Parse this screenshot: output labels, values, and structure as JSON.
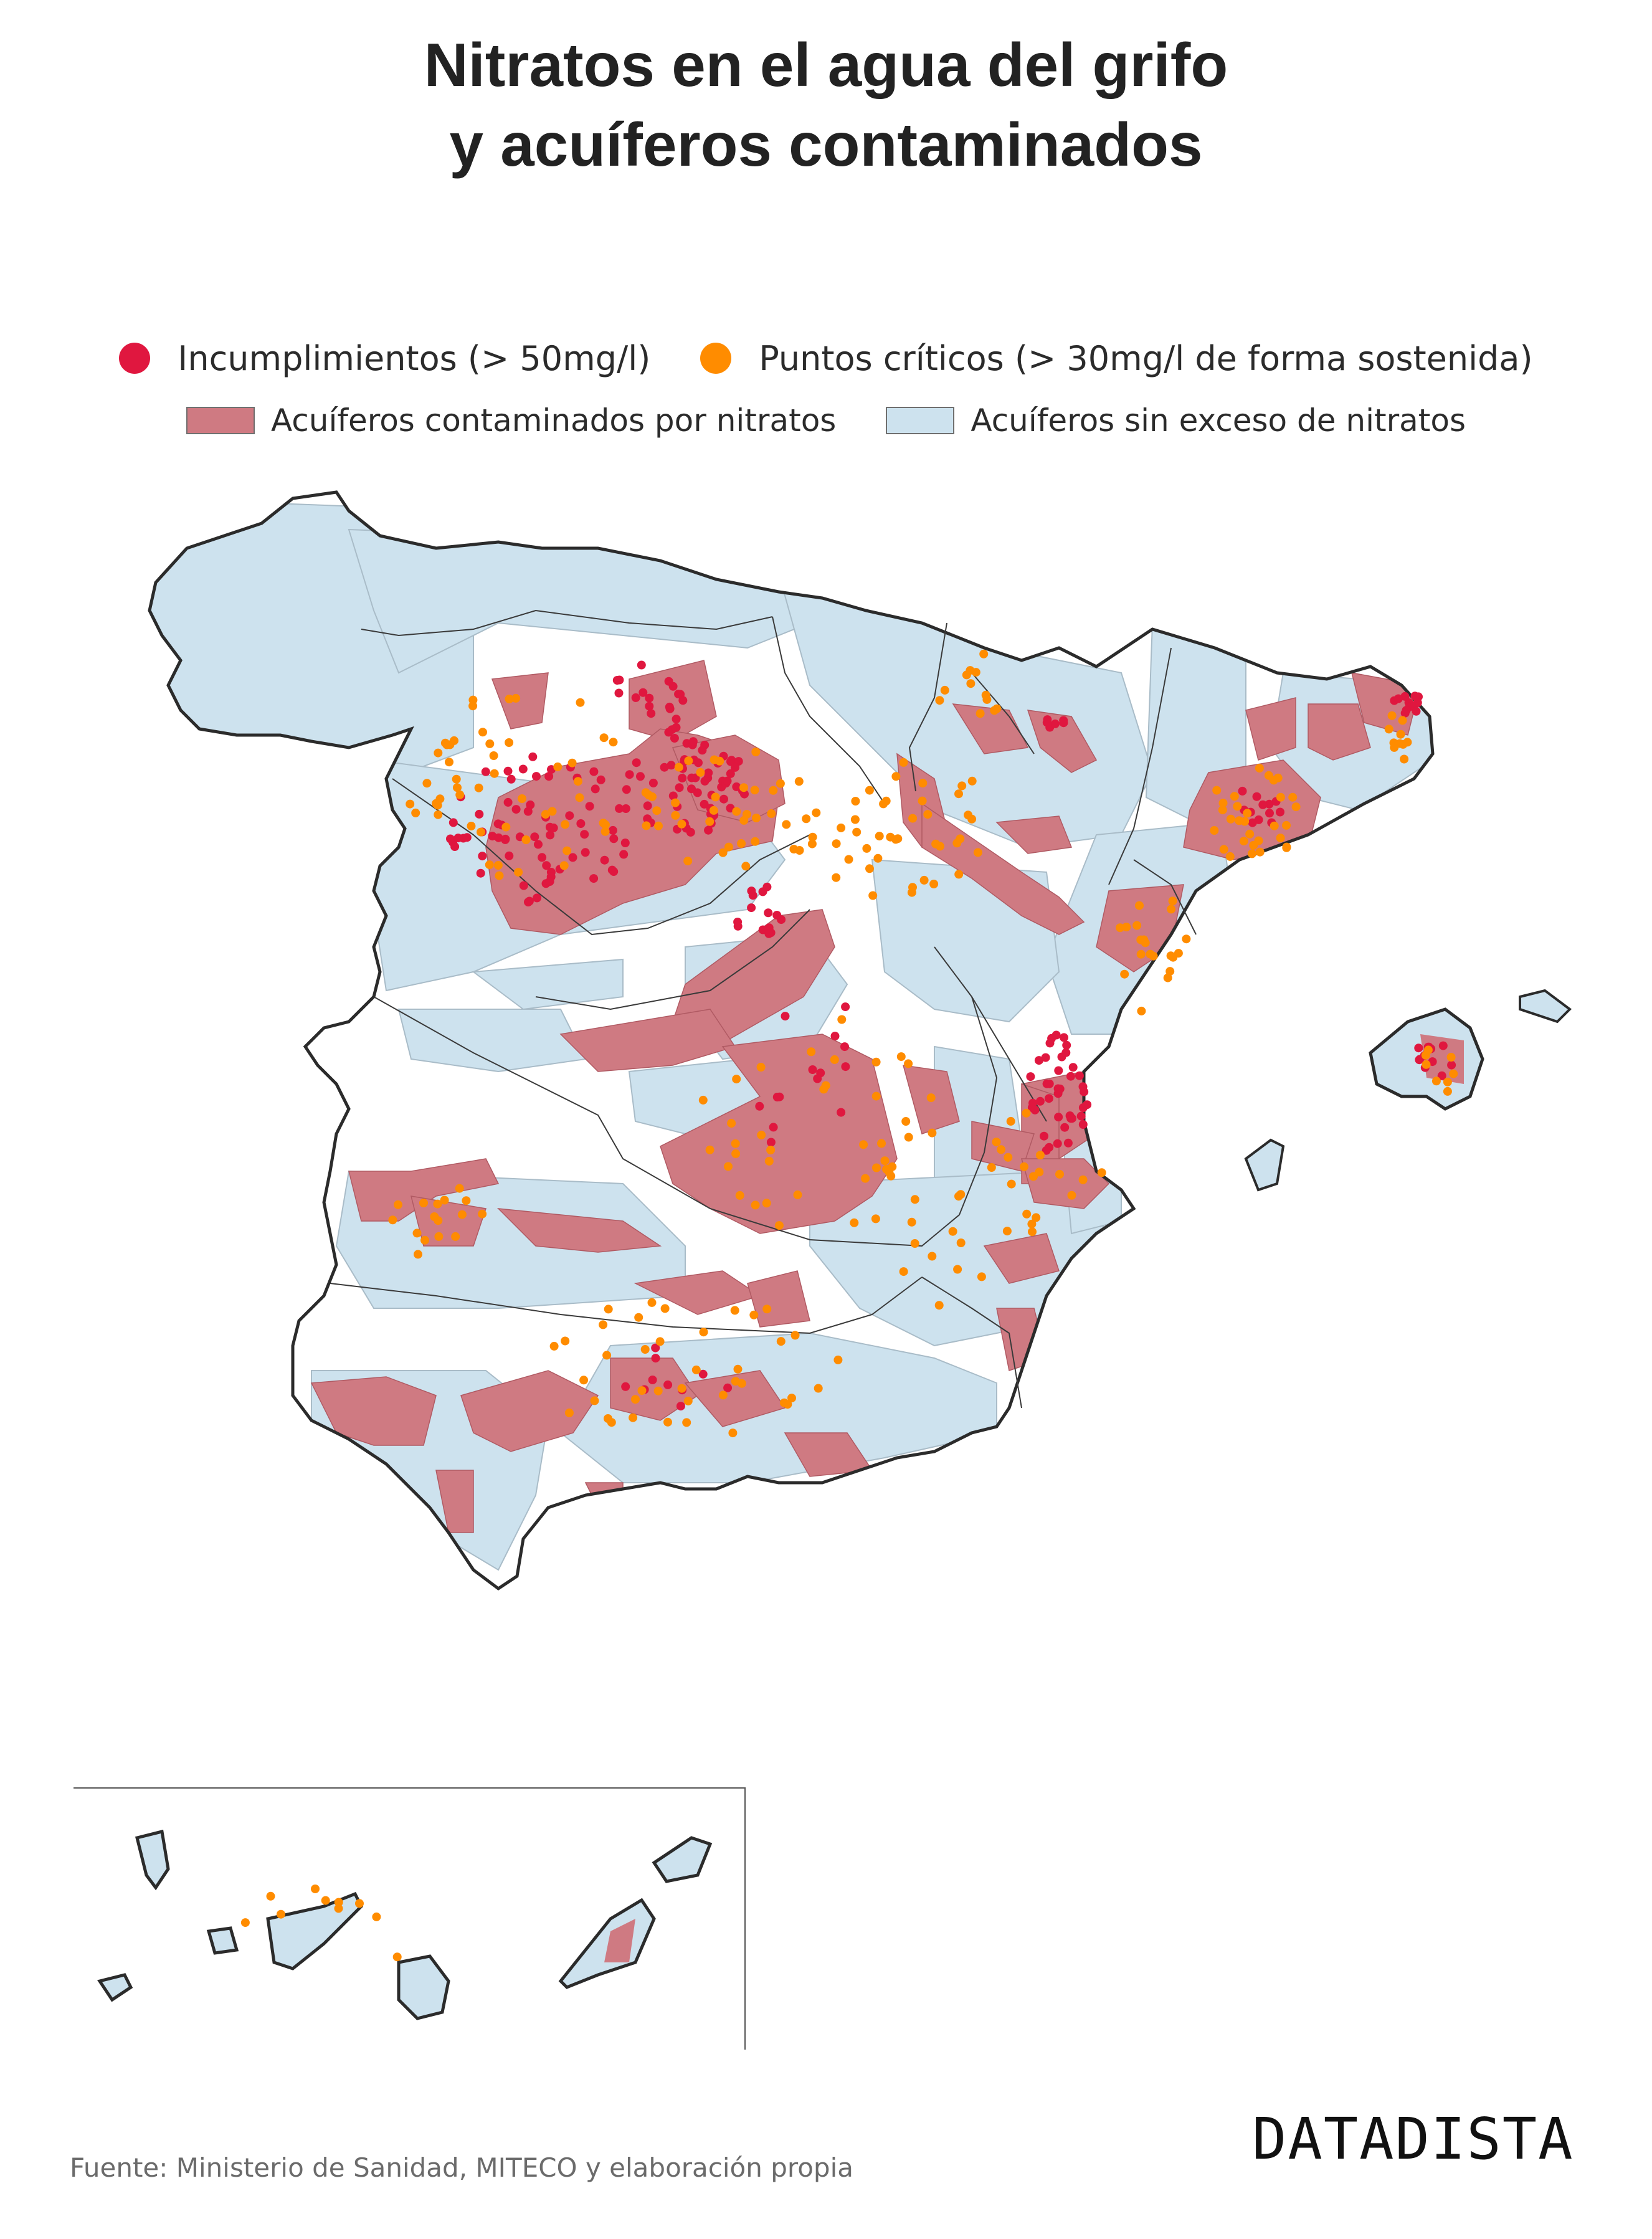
{
  "title": {
    "line1": "Nitratos en el agua del grifo",
    "line2": "y acuíferos contaminados"
  },
  "legend": {
    "incumplimientos": {
      "label": "Incumplimientos (> 50mg/l)",
      "color": "#e0173f"
    },
    "puntos_criticos": {
      "label": "Puntos críticos (> 30mg/l de forma sostenida)",
      "color": "#ff8c00"
    },
    "acuiferos_contaminados": {
      "label": "Acuíferos contaminados por nitratos",
      "color": "#cf7a82"
    },
    "acuiferos_sin_exceso": {
      "label": "Acuíferos sin exceso de nitratos",
      "color": "#cde2ee"
    }
  },
  "colors": {
    "land": "#ffffff",
    "coast": "#2b2b2b",
    "borders": "#3a3a3a",
    "aquifer_edge": "#a9bcc8"
  },
  "icons": {
    "incumplimientos": "red-dot-icon",
    "puntos_criticos": "orange-dot-icon"
  },
  "source": "Fuente: Ministerio de Sanidad, MITECO y elaboración propia",
  "brand": "DATADISTA"
}
